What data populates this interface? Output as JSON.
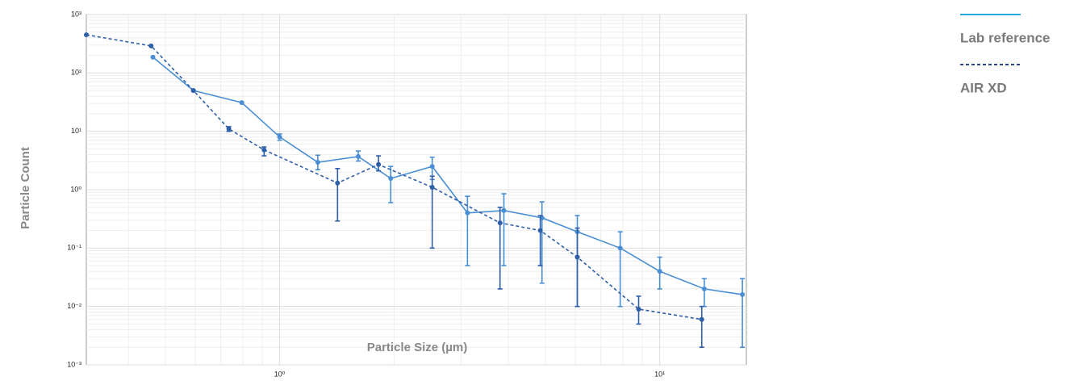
{
  "chart_data": {
    "type": "line",
    "x_label": "Particle Size (µm)",
    "y_label": "Particle Count",
    "xscale": "log",
    "yscale": "log",
    "grid": true,
    "legend": "right",
    "xlim": [
      0.31,
      16.9
    ],
    "ylim": [
      0.001,
      1000
    ],
    "xticks": [
      {
        "value": 1,
        "label": "10⁰"
      },
      {
        "value": 10,
        "label": "10¹"
      }
    ],
    "yticks": [
      {
        "value": 0.001,
        "label": "10⁻³"
      },
      {
        "value": 0.01,
        "label": "10⁻²"
      },
      {
        "value": 0.1,
        "label": "10⁻¹"
      },
      {
        "value": 1,
        "label": "10⁰"
      },
      {
        "value": 10,
        "label": "10¹"
      },
      {
        "value": 100,
        "label": "10²"
      },
      {
        "value": 1000,
        "label": "10³"
      }
    ],
    "series": [
      {
        "name": "Lab reference",
        "color": "#4a8fd4",
        "legend_color": "#2aa7de",
        "dash": false,
        "x": [
          0.464,
          0.593,
          0.795,
          1.0,
          1.26,
          1.61,
          1.96,
          2.52,
          3.12,
          3.89,
          4.9,
          6.07,
          7.87,
          10,
          13.1,
          16.5
        ],
        "values": [
          186,
          50,
          31,
          8,
          2.95,
          3.7,
          1.56,
          2.5,
          0.4,
          0.44,
          0.33,
          0.19,
          0.1,
          0.04,
          0.02,
          0.016
        ],
        "yerr_low": [
          null,
          null,
          null,
          7,
          2.2,
          3.1,
          0.6,
          1.5,
          0.05,
          0.05,
          0.025,
          0.01,
          0.01,
          0.02,
          0.01,
          0.002
        ],
        "yerr_high": [
          null,
          null,
          null,
          9,
          3.9,
          4.6,
          2.5,
          3.6,
          0.77,
          0.85,
          0.62,
          0.36,
          0.19,
          0.07,
          0.03,
          0.03
        ]
      },
      {
        "name": "AIR XD",
        "color": "#2f5fa8",
        "legend_color": "#2e4a8f",
        "dash": true,
        "x": [
          0.31,
          0.459,
          0.593,
          0.735,
          0.91,
          1.42,
          1.82,
          2.52,
          3.8,
          4.85,
          6.07,
          8.8,
          12.9
        ],
        "values": [
          450,
          290,
          50,
          11,
          4.8,
          1.3,
          2.7,
          1.1,
          0.27,
          0.2,
          0.07,
          0.009,
          0.006
        ],
        "yerr_low": [
          null,
          null,
          null,
          10,
          3.8,
          0.29,
          2.1,
          0.1,
          0.02,
          0.05,
          0.01,
          0.005,
          0.002
        ],
        "yerr_high": [
          null,
          null,
          null,
          12,
          5.4,
          2.3,
          3.8,
          1.7,
          0.5,
          0.36,
          0.22,
          0.015,
          0.01
        ]
      }
    ]
  }
}
